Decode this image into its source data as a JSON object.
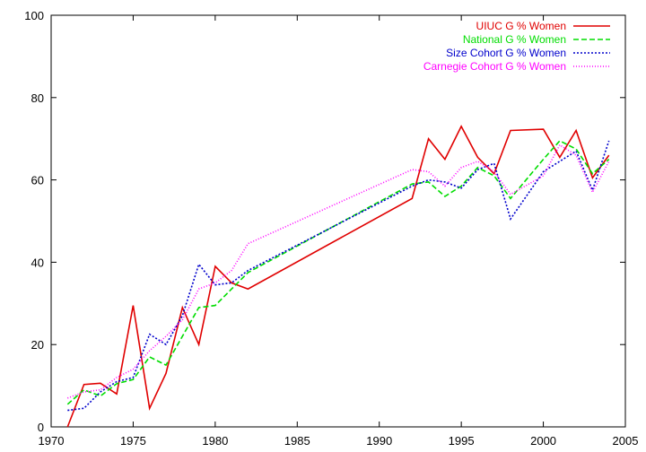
{
  "chart_data": {
    "type": "line",
    "title": "",
    "xlabel": "",
    "ylabel": "",
    "xlim": [
      1970,
      2005
    ],
    "ylim": [
      0,
      100
    ],
    "xticks": [
      1970,
      1975,
      1980,
      1985,
      1990,
      1995,
      2000,
      2005
    ],
    "yticks": [
      0,
      20,
      40,
      60,
      80,
      100
    ],
    "grid": false,
    "legend_position": "top-right",
    "series": [
      {
        "name": "UIUC G % Women",
        "color": "#e00000",
        "dash": "solid",
        "points": [
          [
            1971,
            0
          ],
          [
            1972,
            10.3
          ],
          [
            1973,
            10.6
          ],
          [
            1974,
            8
          ],
          [
            1975,
            29.5
          ],
          [
            1976,
            4.5
          ],
          [
            1977,
            13
          ],
          [
            1978,
            29
          ],
          [
            1979,
            20
          ],
          [
            1980,
            39
          ],
          [
            1981,
            35
          ],
          [
            1982,
            33.5
          ],
          [
            1992,
            55.5
          ],
          [
            1993,
            70
          ],
          [
            1994,
            65
          ],
          [
            1995,
            73
          ],
          [
            1996,
            65.5
          ],
          [
            1997,
            61.5
          ],
          [
            1998,
            72
          ],
          [
            2000,
            72.3
          ],
          [
            2001,
            65.5
          ],
          [
            2002,
            72
          ],
          [
            2003,
            60.5
          ],
          [
            2004,
            66
          ]
        ]
      },
      {
        "name": "National G % Women",
        "color": "#00dd00",
        "dash": "dashed",
        "points": [
          [
            1971,
            5.5
          ],
          [
            1972,
            9
          ],
          [
            1973,
            7.5
          ],
          [
            1974,
            10.5
          ],
          [
            1975,
            11.5
          ],
          [
            1976,
            17
          ],
          [
            1977,
            15
          ],
          [
            1978,
            22
          ],
          [
            1979,
            29
          ],
          [
            1980,
            29.5
          ],
          [
            1981,
            33.5
          ],
          [
            1982,
            37.5
          ],
          [
            1992,
            59
          ],
          [
            1993,
            59.5
          ],
          [
            1994,
            56
          ],
          [
            1995,
            58.5
          ],
          [
            1996,
            63
          ],
          [
            1997,
            61
          ],
          [
            1998,
            55.5
          ],
          [
            2000,
            65
          ],
          [
            2001,
            69.5
          ],
          [
            2002,
            67.5
          ],
          [
            2003,
            61.5
          ],
          [
            2004,
            65
          ]
        ]
      },
      {
        "name": "Size Cohort G % Women",
        "color": "#0000cc",
        "dash": "dotted",
        "points": [
          [
            1971,
            4
          ],
          [
            1972,
            4.5
          ],
          [
            1973,
            8.5
          ],
          [
            1974,
            11
          ],
          [
            1975,
            12
          ],
          [
            1976,
            22.5
          ],
          [
            1977,
            20
          ],
          [
            1978,
            27
          ],
          [
            1979,
            39.5
          ],
          [
            1980,
            34.5
          ],
          [
            1981,
            35
          ],
          [
            1982,
            38
          ],
          [
            1992,
            58.5
          ],
          [
            1993,
            60
          ],
          [
            1994,
            59.5
          ],
          [
            1995,
            58
          ],
          [
            1996,
            62.5
          ],
          [
            1997,
            64
          ],
          [
            1998,
            50.5
          ],
          [
            2000,
            62
          ],
          [
            2001,
            64.5
          ],
          [
            2002,
            67
          ],
          [
            2003,
            57.5
          ],
          [
            2004,
            69.5
          ]
        ]
      },
      {
        "name": "Carnegie Cohort G % Women",
        "color": "#ff00ff",
        "dash": "finedotted",
        "points": [
          [
            1971,
            7
          ],
          [
            1972,
            8.5
          ],
          [
            1973,
            9
          ],
          [
            1974,
            12
          ],
          [
            1975,
            14
          ],
          [
            1976,
            18.5
          ],
          [
            1977,
            22
          ],
          [
            1978,
            26
          ],
          [
            1979,
            33.5
          ],
          [
            1980,
            35
          ],
          [
            1981,
            38
          ],
          [
            1982,
            44.5
          ],
          [
            1992,
            62.5
          ],
          [
            1993,
            62
          ],
          [
            1994,
            58.5
          ],
          [
            1995,
            63
          ],
          [
            1996,
            64.5
          ],
          [
            1997,
            62
          ],
          [
            1998,
            56.5
          ],
          [
            2000,
            61
          ],
          [
            2001,
            68.5
          ],
          [
            2002,
            66
          ],
          [
            2003,
            57
          ],
          [
            2004,
            64.5
          ]
        ]
      }
    ]
  }
}
